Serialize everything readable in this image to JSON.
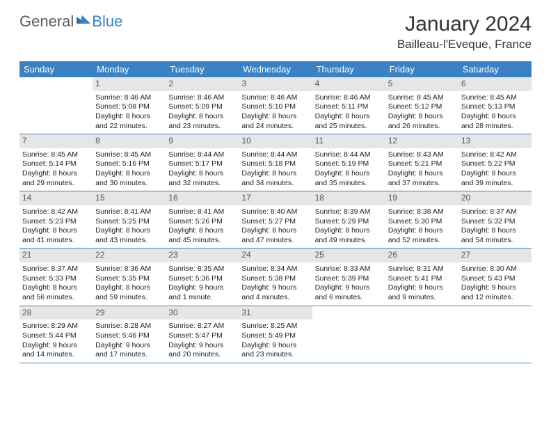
{
  "logo": {
    "part1": "General",
    "part2": "Blue"
  },
  "title": "January 2024",
  "location": "Bailleau-l'Eveque, France",
  "header_bg": "#3b82c4",
  "daynum_bg": "#e6e6e6",
  "day_names": [
    "Sunday",
    "Monday",
    "Tuesday",
    "Wednesday",
    "Thursday",
    "Friday",
    "Saturday"
  ],
  "weeks": [
    [
      {
        "n": "",
        "sr": "",
        "ss": "",
        "d1": "",
        "d2": ""
      },
      {
        "n": "1",
        "sr": "Sunrise: 8:46 AM",
        "ss": "Sunset: 5:08 PM",
        "d1": "Daylight: 8 hours",
        "d2": "and 22 minutes."
      },
      {
        "n": "2",
        "sr": "Sunrise: 8:46 AM",
        "ss": "Sunset: 5:09 PM",
        "d1": "Daylight: 8 hours",
        "d2": "and 23 minutes."
      },
      {
        "n": "3",
        "sr": "Sunrise: 8:46 AM",
        "ss": "Sunset: 5:10 PM",
        "d1": "Daylight: 8 hours",
        "d2": "and 24 minutes."
      },
      {
        "n": "4",
        "sr": "Sunrise: 8:46 AM",
        "ss": "Sunset: 5:11 PM",
        "d1": "Daylight: 8 hours",
        "d2": "and 25 minutes."
      },
      {
        "n": "5",
        "sr": "Sunrise: 8:45 AM",
        "ss": "Sunset: 5:12 PM",
        "d1": "Daylight: 8 hours",
        "d2": "and 26 minutes."
      },
      {
        "n": "6",
        "sr": "Sunrise: 8:45 AM",
        "ss": "Sunset: 5:13 PM",
        "d1": "Daylight: 8 hours",
        "d2": "and 28 minutes."
      }
    ],
    [
      {
        "n": "7",
        "sr": "Sunrise: 8:45 AM",
        "ss": "Sunset: 5:14 PM",
        "d1": "Daylight: 8 hours",
        "d2": "and 29 minutes."
      },
      {
        "n": "8",
        "sr": "Sunrise: 8:45 AM",
        "ss": "Sunset: 5:16 PM",
        "d1": "Daylight: 8 hours",
        "d2": "and 30 minutes."
      },
      {
        "n": "9",
        "sr": "Sunrise: 8:44 AM",
        "ss": "Sunset: 5:17 PM",
        "d1": "Daylight: 8 hours",
        "d2": "and 32 minutes."
      },
      {
        "n": "10",
        "sr": "Sunrise: 8:44 AM",
        "ss": "Sunset: 5:18 PM",
        "d1": "Daylight: 8 hours",
        "d2": "and 34 minutes."
      },
      {
        "n": "11",
        "sr": "Sunrise: 8:44 AM",
        "ss": "Sunset: 5:19 PM",
        "d1": "Daylight: 8 hours",
        "d2": "and 35 minutes."
      },
      {
        "n": "12",
        "sr": "Sunrise: 8:43 AM",
        "ss": "Sunset: 5:21 PM",
        "d1": "Daylight: 8 hours",
        "d2": "and 37 minutes."
      },
      {
        "n": "13",
        "sr": "Sunrise: 8:42 AM",
        "ss": "Sunset: 5:22 PM",
        "d1": "Daylight: 8 hours",
        "d2": "and 39 minutes."
      }
    ],
    [
      {
        "n": "14",
        "sr": "Sunrise: 8:42 AM",
        "ss": "Sunset: 5:23 PM",
        "d1": "Daylight: 8 hours",
        "d2": "and 41 minutes."
      },
      {
        "n": "15",
        "sr": "Sunrise: 8:41 AM",
        "ss": "Sunset: 5:25 PM",
        "d1": "Daylight: 8 hours",
        "d2": "and 43 minutes."
      },
      {
        "n": "16",
        "sr": "Sunrise: 8:41 AM",
        "ss": "Sunset: 5:26 PM",
        "d1": "Daylight: 8 hours",
        "d2": "and 45 minutes."
      },
      {
        "n": "17",
        "sr": "Sunrise: 8:40 AM",
        "ss": "Sunset: 5:27 PM",
        "d1": "Daylight: 8 hours",
        "d2": "and 47 minutes."
      },
      {
        "n": "18",
        "sr": "Sunrise: 8:39 AM",
        "ss": "Sunset: 5:29 PM",
        "d1": "Daylight: 8 hours",
        "d2": "and 49 minutes."
      },
      {
        "n": "19",
        "sr": "Sunrise: 8:38 AM",
        "ss": "Sunset: 5:30 PM",
        "d1": "Daylight: 8 hours",
        "d2": "and 52 minutes."
      },
      {
        "n": "20",
        "sr": "Sunrise: 8:37 AM",
        "ss": "Sunset: 5:32 PM",
        "d1": "Daylight: 8 hours",
        "d2": "and 54 minutes."
      }
    ],
    [
      {
        "n": "21",
        "sr": "Sunrise: 8:37 AM",
        "ss": "Sunset: 5:33 PM",
        "d1": "Daylight: 8 hours",
        "d2": "and 56 minutes."
      },
      {
        "n": "22",
        "sr": "Sunrise: 8:36 AM",
        "ss": "Sunset: 5:35 PM",
        "d1": "Daylight: 8 hours",
        "d2": "and 59 minutes."
      },
      {
        "n": "23",
        "sr": "Sunrise: 8:35 AM",
        "ss": "Sunset: 5:36 PM",
        "d1": "Daylight: 9 hours",
        "d2": "and 1 minute."
      },
      {
        "n": "24",
        "sr": "Sunrise: 8:34 AM",
        "ss": "Sunset: 5:38 PM",
        "d1": "Daylight: 9 hours",
        "d2": "and 4 minutes."
      },
      {
        "n": "25",
        "sr": "Sunrise: 8:33 AM",
        "ss": "Sunset: 5:39 PM",
        "d1": "Daylight: 9 hours",
        "d2": "and 6 minutes."
      },
      {
        "n": "26",
        "sr": "Sunrise: 8:31 AM",
        "ss": "Sunset: 5:41 PM",
        "d1": "Daylight: 9 hours",
        "d2": "and 9 minutes."
      },
      {
        "n": "27",
        "sr": "Sunrise: 8:30 AM",
        "ss": "Sunset: 5:43 PM",
        "d1": "Daylight: 9 hours",
        "d2": "and 12 minutes."
      }
    ],
    [
      {
        "n": "28",
        "sr": "Sunrise: 8:29 AM",
        "ss": "Sunset: 5:44 PM",
        "d1": "Daylight: 9 hours",
        "d2": "and 14 minutes."
      },
      {
        "n": "29",
        "sr": "Sunrise: 8:28 AM",
        "ss": "Sunset: 5:46 PM",
        "d1": "Daylight: 9 hours",
        "d2": "and 17 minutes."
      },
      {
        "n": "30",
        "sr": "Sunrise: 8:27 AM",
        "ss": "Sunset: 5:47 PM",
        "d1": "Daylight: 9 hours",
        "d2": "and 20 minutes."
      },
      {
        "n": "31",
        "sr": "Sunrise: 8:25 AM",
        "ss": "Sunset: 5:49 PM",
        "d1": "Daylight: 9 hours",
        "d2": "and 23 minutes."
      },
      {
        "n": "",
        "sr": "",
        "ss": "",
        "d1": "",
        "d2": ""
      },
      {
        "n": "",
        "sr": "",
        "ss": "",
        "d1": "",
        "d2": ""
      },
      {
        "n": "",
        "sr": "",
        "ss": "",
        "d1": "",
        "d2": ""
      }
    ]
  ]
}
